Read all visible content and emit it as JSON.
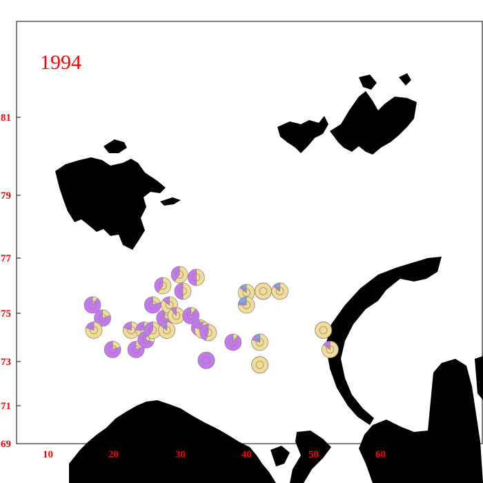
{
  "map": {
    "year": "1994",
    "x_tick_labels": [
      "10",
      "20",
      "30",
      "40",
      "50",
      "60"
    ],
    "y_tick_labels": [
      "69",
      "71",
      "73",
      "75",
      "77",
      "79",
      "81"
    ],
    "colors": {
      "label": "#ff0000",
      "land": "#000000",
      "sample_primary": "#f3dd96",
      "sample_secondary": "#c477f0",
      "sample_tertiary": "#7da8e0",
      "sample_outline": "#8a8a8a"
    }
  },
  "chart_data": {
    "type": "pie",
    "title": "1994",
    "xlabel": "",
    "ylabel": "",
    "xlim": [
      5,
      69
    ],
    "ylim": [
      69,
      84
    ],
    "category_colors": [
      "#f3dd96",
      "#c477f0",
      "#7da8e0"
    ],
    "samples": [
      {
        "lon": 16.5,
        "lat": 75.3,
        "shares": [
          0.1,
          0.9,
          0.0
        ]
      },
      {
        "lon": 18.0,
        "lat": 74.8,
        "shares": [
          0.2,
          0.8,
          0.0
        ]
      },
      {
        "lon": 16.7,
        "lat": 74.3,
        "shares": [
          0.8,
          0.2,
          0.0
        ]
      },
      {
        "lon": 19.5,
        "lat": 73.5,
        "shares": [
          0.2,
          0.8,
          0.0
        ]
      },
      {
        "lon": 22.3,
        "lat": 74.3,
        "shares": [
          0.8,
          0.2,
          0.0
        ]
      },
      {
        "lon": 23.0,
        "lat": 73.5,
        "shares": [
          0.2,
          0.8,
          0.0
        ]
      },
      {
        "lon": 24.2,
        "lat": 74.3,
        "shares": [
          0.75,
          0.25,
          0.0
        ]
      },
      {
        "lon": 24.5,
        "lat": 73.9,
        "shares": [
          0.3,
          0.7,
          0.0
        ]
      },
      {
        "lon": 25.5,
        "lat": 74.3,
        "shares": [
          0.6,
          0.4,
          0.0
        ]
      },
      {
        "lon": 25.5,
        "lat": 75.3,
        "shares": [
          0.2,
          0.8,
          0.0
        ]
      },
      {
        "lon": 27.0,
        "lat": 76.0,
        "shares": [
          0.6,
          0.4,
          0.0
        ]
      },
      {
        "lon": 27.3,
        "lat": 74.8,
        "shares": [
          0.3,
          0.7,
          0.0
        ]
      },
      {
        "lon": 27.6,
        "lat": 74.3,
        "shares": [
          0.85,
          0.15,
          0.0
        ]
      },
      {
        "lon": 28.0,
        "lat": 75.3,
        "shares": [
          0.85,
          0.15,
          0.0
        ]
      },
      {
        "lon": 29.0,
        "lat": 74.9,
        "shares": [
          0.9,
          0.1,
          0.0
        ]
      },
      {
        "lon": 29.5,
        "lat": 76.4,
        "shares": [
          0.6,
          0.4,
          0.0
        ]
      },
      {
        "lon": 30.0,
        "lat": 75.8,
        "shares": [
          0.5,
          0.5,
          0.0
        ]
      },
      {
        "lon": 31.2,
        "lat": 74.9,
        "shares": [
          0.1,
          0.9,
          0.0
        ]
      },
      {
        "lon": 32.0,
        "lat": 76.3,
        "shares": [
          0.5,
          0.5,
          0.0
        ]
      },
      {
        "lon": 32.5,
        "lat": 74.4,
        "shares": [
          0.2,
          0.8,
          0.0
        ]
      },
      {
        "lon": 33.0,
        "lat": 74.3,
        "shares": [
          0.8,
          0.2,
          0.0
        ]
      },
      {
        "lon": 33.8,
        "lat": 74.2,
        "shares": [
          0.55,
          0.45,
          0.0
        ]
      },
      {
        "lon": 33.5,
        "lat": 73.05,
        "shares": [
          0.0,
          1.0,
          0.0
        ]
      },
      {
        "lon": 37.5,
        "lat": 73.8,
        "shares": [
          0.1,
          0.9,
          0.0
        ]
      },
      {
        "lon": 39.5,
        "lat": 75.75,
        "shares": [
          0.85,
          0.05,
          0.1
        ]
      },
      {
        "lon": 39.5,
        "lat": 75.3,
        "shares": [
          0.75,
          0.05,
          0.2
        ]
      },
      {
        "lon": 42.0,
        "lat": 75.8,
        "shares": [
          1.0,
          0.0,
          0.0
        ]
      },
      {
        "lon": 44.5,
        "lat": 75.8,
        "shares": [
          0.85,
          0.05,
          0.1
        ]
      },
      {
        "lon": 41.5,
        "lat": 73.8,
        "shares": [
          0.8,
          0.1,
          0.1
        ]
      },
      {
        "lon": 41.5,
        "lat": 72.85,
        "shares": [
          1.0,
          0.0,
          0.0
        ]
      },
      {
        "lon": 51.0,
        "lat": 74.3,
        "shares": [
          1.0,
          0.0,
          0.0
        ]
      },
      {
        "lon": 52.0,
        "lat": 73.5,
        "shares": [
          0.85,
          0.15,
          0.0
        ]
      }
    ]
  }
}
